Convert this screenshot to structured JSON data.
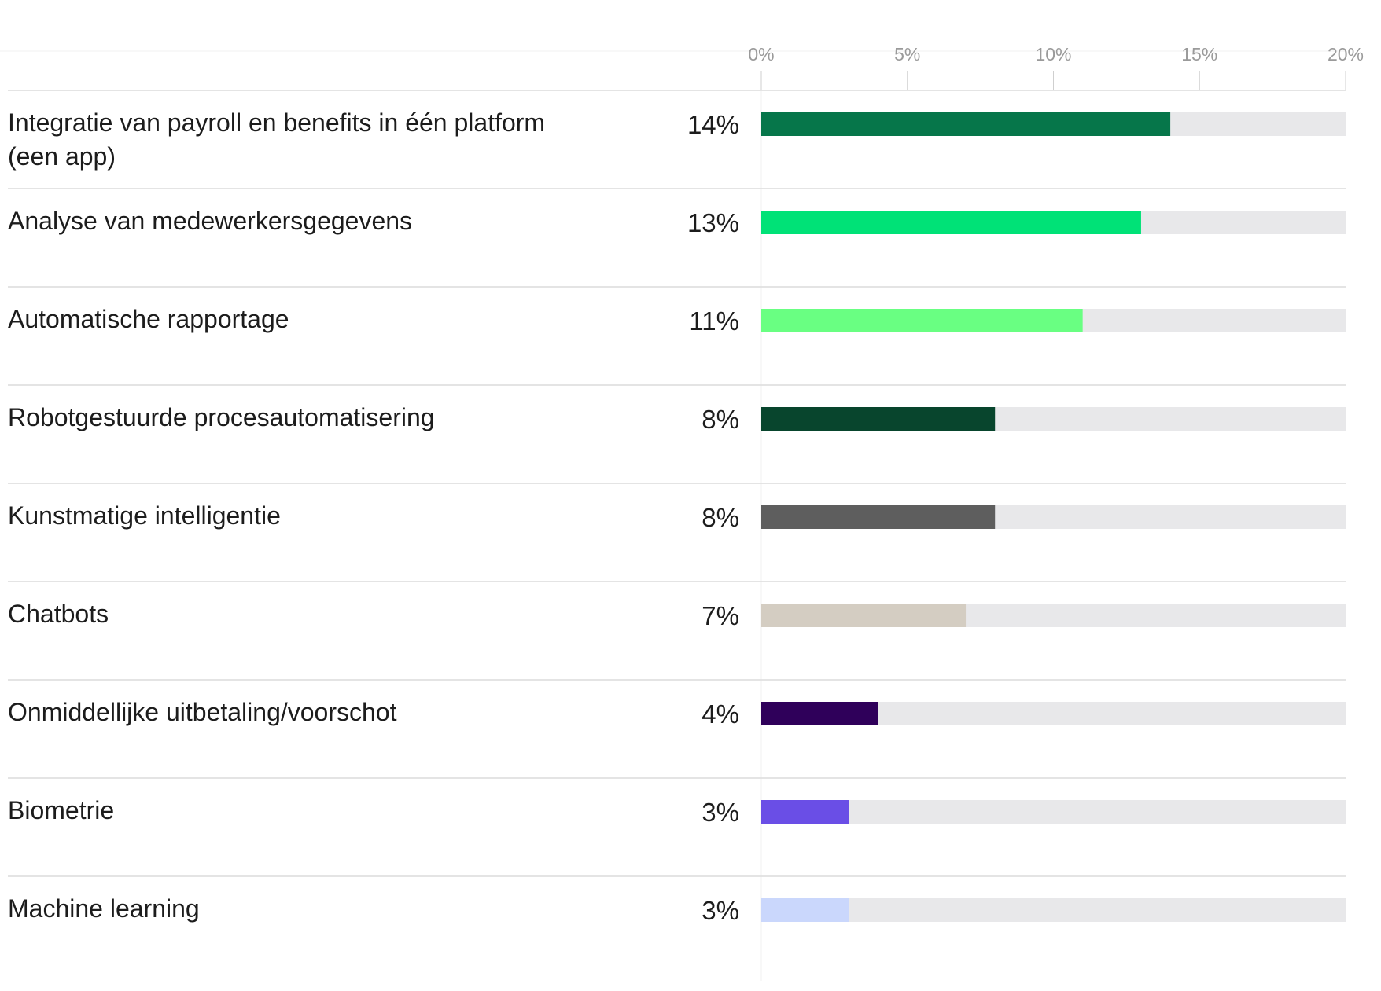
{
  "chart_data": {
    "type": "bar",
    "orientation": "horizontal",
    "title": "",
    "xlabel": "",
    "ylabel": "",
    "xlim": [
      0,
      20
    ],
    "ticks": [
      0,
      5,
      10,
      15,
      20
    ],
    "tick_labels": [
      "0%",
      "5%",
      "10%",
      "15%",
      "20%"
    ],
    "grid": true,
    "legend": "none",
    "categories": [
      "Integratie van payroll en benefits in één platform (een app)",
      "Analyse van medewerkersgegevens",
      "Automatische rapportage",
      "Robotgestuurde procesautomatisering",
      "Kunstmatige intelligentie",
      "Chatbots",
      "Onmiddellijke uitbetaling/voorschot",
      "Biometrie",
      "Machine learning"
    ],
    "values": [
      14,
      13,
      11,
      8,
      8,
      7,
      4,
      3,
      3
    ],
    "value_labels": [
      "14%",
      "13%",
      "11%",
      "8%",
      "8%",
      "7%",
      "4%",
      "3%",
      "3%"
    ],
    "colors": [
      "#06764a",
      "#00e277",
      "#69ff82",
      "#08452d",
      "#5e5e5e",
      "#d4cdc2",
      "#2f005a",
      "#6a4ee6",
      "#cad7fc"
    ],
    "track_color": "#e8e8ea"
  }
}
